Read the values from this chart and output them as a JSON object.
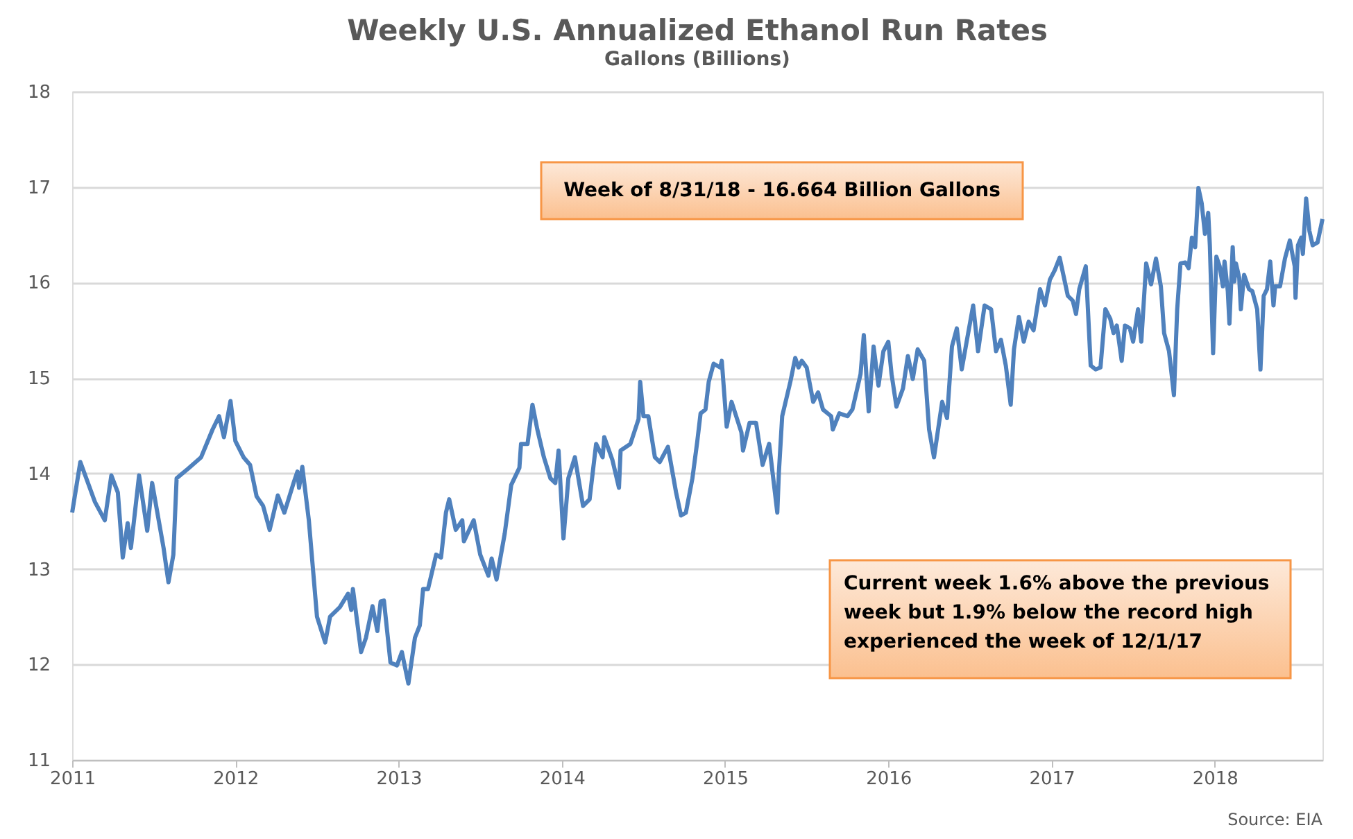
{
  "chart_data": {
    "type": "line",
    "title": "Weekly U.S. Annualized Ethanol Run Rates",
    "subtitle": "Gallons (Billions)",
    "x": [
      2011.0,
      2011.05,
      2011.14,
      2011.2,
      2011.24,
      2011.28,
      2011.31,
      2011.34,
      2011.36,
      2011.41,
      2011.46,
      2011.49,
      2011.56,
      2011.59,
      2011.62,
      2011.64,
      2011.71,
      2011.79,
      2011.86,
      2011.9,
      2011.93,
      2011.97,
      2012.0,
      2012.05,
      2012.09,
      2012.13,
      2012.17,
      2012.21,
      2012.26,
      2012.3,
      2012.36,
      2012.38,
      2012.39,
      2012.41,
      2012.45,
      2012.5,
      2012.55,
      2012.58,
      2012.64,
      2012.69,
      2012.71,
      2012.72,
      2012.77,
      2012.8,
      2012.84,
      2012.87,
      2012.89,
      2012.91,
      2012.95,
      2012.99,
      2013.02,
      2013.06,
      2013.1,
      2013.13,
      2013.15,
      2013.18,
      2013.23,
      2013.26,
      2013.29,
      2013.31,
      2013.35,
      2013.39,
      2013.4,
      2013.46,
      2013.5,
      2013.55,
      2013.57,
      2013.6,
      2013.65,
      2013.69,
      2013.74,
      2013.75,
      2013.79,
      2013.82,
      2013.85,
      2013.89,
      2013.93,
      2013.96,
      2013.98,
      2014.01,
      2014.04,
      2014.08,
      2014.13,
      2014.17,
      2014.21,
      2014.25,
      2014.26,
      2014.31,
      2014.35,
      2014.36,
      2014.42,
      2014.47,
      2014.48,
      2014.5,
      2014.53,
      2014.57,
      2014.6,
      2014.65,
      2014.7,
      2014.73,
      2014.76,
      2014.8,
      2014.83,
      2014.85,
      2014.88,
      2014.9,
      2014.93,
      2014.97,
      2014.98,
      2015.01,
      2015.04,
      2015.1,
      2015.11,
      2015.15,
      2015.19,
      2015.23,
      2015.27,
      2015.3,
      2015.32,
      2015.33,
      2015.35,
      2015.4,
      2015.43,
      2015.45,
      2015.47,
      2015.5,
      2015.54,
      2015.57,
      2015.6,
      2015.65,
      2015.66,
      2015.7,
      2015.75,
      2015.78,
      2015.83,
      2015.85,
      2015.88,
      2015.91,
      2015.94,
      2015.97,
      2016.0,
      2016.02,
      2016.05,
      2016.09,
      2016.12,
      2016.15,
      2016.18,
      2016.22,
      2016.25,
      2016.28,
      2016.33,
      2016.36,
      2016.39,
      2016.42,
      2016.45,
      2016.48,
      2016.52,
      2016.55,
      2016.59,
      2016.63,
      2016.66,
      2016.69,
      2016.72,
      2016.75,
      2016.77,
      2016.8,
      2016.83,
      2016.86,
      2016.89,
      2016.93,
      2016.96,
      2016.99,
      2017.02,
      2017.05,
      2017.07,
      2017.1,
      2017.13,
      2017.15,
      2017.17,
      2017.21,
      2017.24,
      2017.27,
      2017.3,
      2017.33,
      2017.36,
      2017.38,
      2017.4,
      2017.43,
      2017.45,
      2017.48,
      2017.5,
      2017.53,
      2017.55,
      2017.58,
      2017.61,
      2017.64,
      2017.67,
      2017.69,
      2017.72,
      2017.75,
      2017.77,
      2017.79,
      2017.82,
      2017.84,
      2017.86,
      2017.88,
      2017.9,
      2017.92,
      2017.94,
      2017.96,
      2017.97,
      2017.99,
      2018.01,
      2018.03,
      2018.05,
      2018.06,
      2018.08,
      2018.09,
      2018.11,
      2018.12,
      2018.13,
      2018.15,
      2018.16,
      2018.18,
      2018.21,
      2018.23,
      2018.26,
      2018.28,
      2018.3,
      2018.32,
      2018.34,
      2018.36,
      2018.37,
      2018.4,
      2018.43,
      2018.46,
      2018.49,
      2018.495,
      2018.51,
      2018.53,
      2018.54,
      2018.56,
      2018.58,
      2018.6,
      2018.63,
      2018.66
    ],
    "series": [
      {
        "color": "#4f81bd",
        "values": [
          13.59,
          14.12,
          13.7,
          13.51,
          13.98,
          13.8,
          13.12,
          13.48,
          13.22,
          13.98,
          13.4,
          13.9,
          13.22,
          12.86,
          13.15,
          13.95,
          14.05,
          14.17,
          14.46,
          14.6,
          14.38,
          14.76,
          14.34,
          14.17,
          14.09,
          13.76,
          13.66,
          13.41,
          13.77,
          13.59,
          13.92,
          14.02,
          13.85,
          14.07,
          13.51,
          12.5,
          12.23,
          12.5,
          12.6,
          12.74,
          12.57,
          12.79,
          12.13,
          12.28,
          12.61,
          12.35,
          12.66,
          12.67,
          12.02,
          11.99,
          12.13,
          11.8,
          12.28,
          12.41,
          12.79,
          12.79,
          13.15,
          13.12,
          13.59,
          13.73,
          13.41,
          13.51,
          13.29,
          13.51,
          13.15,
          12.93,
          13.11,
          12.89,
          13.37,
          13.88,
          14.06,
          14.31,
          14.31,
          14.72,
          14.46,
          14.17,
          13.95,
          13.9,
          14.24,
          13.32,
          13.95,
          14.17,
          13.66,
          13.73,
          14.31,
          14.17,
          14.38,
          14.14,
          13.85,
          14.24,
          14.31,
          14.57,
          14.96,
          14.6,
          14.6,
          14.17,
          14.12,
          14.28,
          13.8,
          13.56,
          13.59,
          13.95,
          14.34,
          14.63,
          14.67,
          14.96,
          15.15,
          15.11,
          15.18,
          14.49,
          14.75,
          14.43,
          14.24,
          14.53,
          14.53,
          14.09,
          14.31,
          13.88,
          13.59,
          14.02,
          14.6,
          14.96,
          15.21,
          15.11,
          15.18,
          15.11,
          14.75,
          14.85,
          14.67,
          14.6,
          14.46,
          14.63,
          14.6,
          14.67,
          15.04,
          15.45,
          14.65,
          15.33,
          14.92,
          15.28,
          15.38,
          15.04,
          14.7,
          14.89,
          15.23,
          14.99,
          15.3,
          15.18,
          14.46,
          14.17,
          14.75,
          14.58,
          15.33,
          15.52,
          15.09,
          15.38,
          15.76,
          15.28,
          15.76,
          15.72,
          15.28,
          15.4,
          15.13,
          14.72,
          15.3,
          15.64,
          15.38,
          15.59,
          15.5,
          15.93,
          15.76,
          16.03,
          16.13,
          16.26,
          16.1,
          15.86,
          15.81,
          15.67,
          15.93,
          16.17,
          15.13,
          15.09,
          15.11,
          15.72,
          15.62,
          15.47,
          15.55,
          15.18,
          15.55,
          15.52,
          15.38,
          15.72,
          15.38,
          16.2,
          15.98,
          16.25,
          15.96,
          15.47,
          15.28,
          14.82,
          15.72,
          16.2,
          16.21,
          16.15,
          16.47,
          16.37,
          16.99,
          16.83,
          16.51,
          16.73,
          16.39,
          15.26,
          16.27,
          16.17,
          15.96,
          16.22,
          15.91,
          15.57,
          16.37,
          16.01,
          16.2,
          16.05,
          15.72,
          16.08,
          15.93,
          15.91,
          15.72,
          15.09,
          15.86,
          15.93,
          16.22,
          15.76,
          15.96,
          15.96,
          16.25,
          16.44,
          16.17,
          15.84,
          16.39,
          16.47,
          16.3,
          16.88,
          16.54,
          16.39,
          16.42,
          16.664
        ]
      }
    ],
    "xlim": [
      2011,
      2018.66
    ],
    "xticks": [
      2011,
      2012,
      2013,
      2014,
      2015,
      2016,
      2017,
      2018
    ],
    "ylim": [
      11,
      18
    ],
    "yticks": [
      11,
      12,
      13,
      14,
      15,
      16,
      17,
      18
    ],
    "grid": "y",
    "line_style": "solid",
    "annotations": [
      "Week of 8/31/18 - 16.664 Billion Gallons",
      "Current week 1.6% above the previous week but 1.9% below the record high experienced the week of 12/1/17",
      "Source: EIA"
    ]
  }
}
